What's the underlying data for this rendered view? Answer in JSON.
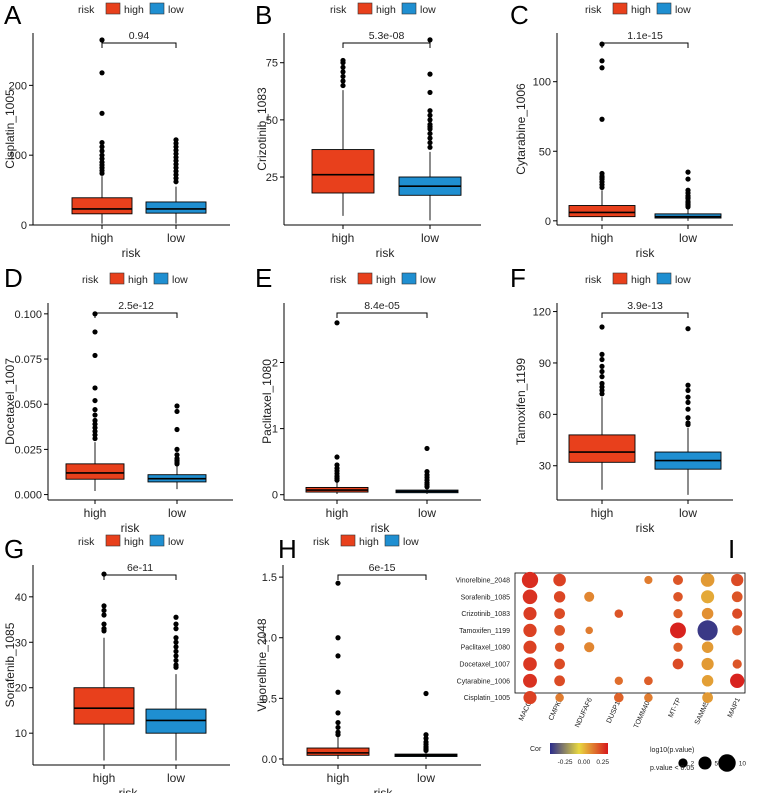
{
  "colors": {
    "high": "#e8401c",
    "low": "#1f8fd1"
  },
  "legend": {
    "title": "risk",
    "high": "high",
    "low": "low"
  },
  "chart_data": [
    {
      "id": "A",
      "type": "box",
      "xlabel": "risk",
      "ylabel": "Cisplatin_1005",
      "categories": [
        "high",
        "low"
      ],
      "pvalue": "0.94",
      "ylim": [
        0,
        275
      ],
      "yticks": [
        0,
        100,
        200
      ],
      "ytick_labels": [
        "0",
        "100",
        "200"
      ],
      "boxes": [
        {
          "q1": 16,
          "median": 23,
          "q3": 39,
          "whisker_low": 2,
          "whisker_high": 70,
          "outliers": [
            265,
            218,
            160,
            118,
            112,
            106,
            100,
            95,
            90,
            86,
            82,
            78,
            74
          ]
        },
        {
          "q1": 17,
          "median": 23,
          "q3": 33,
          "whisker_low": 2,
          "whisker_high": 55,
          "outliers": [
            122,
            117,
            112,
            107,
            102,
            97,
            92,
            87,
            82,
            77,
            72,
            67,
            62
          ]
        }
      ]
    },
    {
      "id": "B",
      "type": "box",
      "xlabel": "risk",
      "ylabel": "Crizotinib_1083",
      "categories": [
        "high",
        "low"
      ],
      "pvalue": "5.3e-08",
      "ylim": [
        4,
        88
      ],
      "yticks": [
        25,
        50,
        75
      ],
      "ytick_labels": [
        "25",
        "50",
        "75"
      ],
      "boxes": [
        {
          "q1": 18,
          "median": 26,
          "q3": 37,
          "whisker_low": 8,
          "whisker_high": 63,
          "outliers": [
            76,
            75,
            73,
            71,
            69,
            67,
            65
          ]
        },
        {
          "q1": 17,
          "median": 21,
          "q3": 25,
          "whisker_low": 6,
          "whisker_high": 36,
          "outliers": [
            85,
            70,
            62,
            54,
            52,
            50,
            48,
            47,
            46,
            44,
            42,
            40,
            38
          ]
        }
      ]
    },
    {
      "id": "C",
      "type": "box",
      "xlabel": "risk",
      "ylabel": "Cytarabine_1006",
      "categories": [
        "high",
        "low"
      ],
      "pvalue": "1.1e-15",
      "ylim": [
        -3,
        135
      ],
      "yticks": [
        0,
        50,
        100
      ],
      "ytick_labels": [
        "0",
        "50",
        "100"
      ],
      "boxes": [
        {
          "q1": 3,
          "median": 6,
          "q3": 11,
          "whisker_low": 0,
          "whisker_high": 22,
          "outliers": [
            127,
            115,
            110,
            73,
            34,
            32,
            31,
            30,
            28,
            26,
            24
          ]
        },
        {
          "q1": 2,
          "median": 3,
          "q3": 5,
          "whisker_low": 0,
          "whisker_high": 9,
          "outliers": [
            35,
            30,
            22,
            20,
            18,
            17,
            16,
            14,
            13,
            12,
            11,
            10
          ]
        }
      ]
    },
    {
      "id": "D",
      "type": "box",
      "xlabel": "risk",
      "ylabel": "Docetaxel_1007",
      "categories": [
        "high",
        "low"
      ],
      "pvalue": "2.5e-12",
      "ylim": [
        -0.003,
        0.106
      ],
      "yticks": [
        0,
        0.025,
        0.05,
        0.075,
        0.1
      ],
      "ytick_labels": [
        "0.000",
        "0.025",
        "0.050",
        "0.075",
        "0.100"
      ],
      "boxes": [
        {
          "q1": 0.0085,
          "median": 0.012,
          "q3": 0.017,
          "whisker_low": 0.002,
          "whisker_high": 0.029,
          "outliers": [
            0.1,
            0.09,
            0.077,
            0.059,
            0.052,
            0.047,
            0.044,
            0.041,
            0.039,
            0.037,
            0.035,
            0.033,
            0.031
          ]
        },
        {
          "q1": 0.007,
          "median": 0.0088,
          "q3": 0.011,
          "whisker_low": 0.003,
          "whisker_high": 0.016,
          "outliers": [
            0.049,
            0.046,
            0.036,
            0.025,
            0.022,
            0.02,
            0.019,
            0.018,
            0.017
          ]
        }
      ]
    },
    {
      "id": "E",
      "type": "box",
      "xlabel": "risk",
      "ylabel": "Paclitaxel_1080",
      "categories": [
        "high",
        "low"
      ],
      "pvalue": "8.4e-05",
      "ylim": [
        -0.08,
        2.9
      ],
      "yticks": [
        0,
        1,
        2
      ],
      "ytick_labels": [
        "0",
        "1",
        "2"
      ],
      "boxes": [
        {
          "q1": 0.04,
          "median": 0.07,
          "q3": 0.11,
          "whisker_low": 0.01,
          "whisker_high": 0.2,
          "outliers": [
            2.6,
            0.57,
            0.45,
            0.4,
            0.36,
            0.32,
            0.28,
            0.25,
            0.22
          ]
        },
        {
          "q1": 0.03,
          "median": 0.05,
          "q3": 0.07,
          "whisker_low": 0.01,
          "whisker_high": 0.1,
          "outliers": [
            0.7,
            0.35,
            0.3,
            0.26,
            0.22,
            0.18,
            0.15,
            0.12
          ]
        }
      ]
    },
    {
      "id": "F",
      "type": "box",
      "xlabel": "risk",
      "ylabel": "Tamoxifen_1199",
      "categories": [
        "high",
        "low"
      ],
      "pvalue": "3.9e-13",
      "ylim": [
        10,
        125
      ],
      "yticks": [
        30,
        60,
        90,
        120
      ],
      "ytick_labels": [
        "30",
        "60",
        "90",
        "120"
      ],
      "boxes": [
        {
          "q1": 32,
          "median": 38,
          "q3": 48,
          "whisker_low": 16,
          "whisker_high": 70,
          "outliers": [
            111,
            95,
            92,
            88,
            85,
            82,
            78,
            76,
            74,
            72
          ]
        },
        {
          "q1": 28,
          "median": 33,
          "q3": 38,
          "whisker_low": 13,
          "whisker_high": 52,
          "outliers": [
            110,
            77,
            74,
            70,
            67,
            63,
            58,
            55,
            54
          ]
        }
      ]
    },
    {
      "id": "G",
      "type": "box",
      "xlabel": "risk",
      "ylabel": "Sorafenib_1085",
      "categories": [
        "high",
        "low"
      ],
      "pvalue": "6e-11",
      "ylim": [
        3,
        47
      ],
      "yticks": [
        10,
        20,
        30,
        40
      ],
      "ytick_labels": [
        "10",
        "20",
        "30",
        "40"
      ],
      "boxes": [
        {
          "q1": 12,
          "median": 15.5,
          "q3": 20,
          "whisker_low": 4,
          "whisker_high": 31,
          "outliers": [
            45,
            38,
            37,
            36,
            34,
            33,
            32.5
          ]
        },
        {
          "q1": 10,
          "median": 12.8,
          "q3": 15.3,
          "whisker_low": 4,
          "whisker_high": 23,
          "outliers": [
            35.5,
            34,
            33,
            31,
            30,
            29,
            28,
            27,
            26,
            25,
            24.5
          ]
        }
      ]
    },
    {
      "id": "H",
      "type": "box",
      "xlabel": "risk",
      "ylabel": "Vinorelbine_2048",
      "categories": [
        "high",
        "low"
      ],
      "pvalue": "6e-15",
      "ylim": [
        -0.05,
        1.6
      ],
      "yticks": [
        0,
        0.5,
        1,
        1.5
      ],
      "ytick_labels": [
        "0.0",
        "0.5",
        "1.0",
        "1.5"
      ],
      "boxes": [
        {
          "q1": 0.03,
          "median": 0.05,
          "q3": 0.09,
          "whisker_low": 0.0,
          "whisker_high": 0.18,
          "outliers": [
            1.45,
            1.0,
            0.85,
            0.55,
            0.38,
            0.3,
            0.26,
            0.22,
            0.2
          ]
        },
        {
          "q1": 0.02,
          "median": 0.03,
          "q3": 0.04,
          "whisker_low": 0.0,
          "whisker_high": 0.06,
          "outliers": [
            0.54,
            0.2,
            0.17,
            0.14,
            0.12,
            0.1,
            0.09,
            0.08,
            0.07
          ]
        }
      ]
    },
    {
      "id": "I",
      "type": "dotplot",
      "rows": [
        "Vinorelbine_2048",
        "Sorafenib_1085",
        "Crizotinib_1083",
        "Tamoxifen_1199",
        "Paclitaxel_1080",
        "Docetaxel_1007",
        "Cytarabine_1006",
        "Cisplatin_1005"
      ],
      "cols": [
        "MACC1",
        "CMPK2",
        "NDUFAF6",
        "DUSP18",
        "TOMM40L",
        "MT-TP",
        "SAMM50",
        "MAIP1"
      ],
      "cells": [
        {
          "r": 0,
          "c": 0,
          "cor": 0.28,
          "lp": 8.5
        },
        {
          "r": 0,
          "c": 1,
          "cor": 0.24,
          "lp": 4.5
        },
        {
          "r": 0,
          "c": 4,
          "cor": 0.12,
          "lp": 1.4
        },
        {
          "r": 0,
          "c": 5,
          "cor": 0.2,
          "lp": 2.5
        },
        {
          "r": 0,
          "c": 6,
          "cor": 0.06,
          "lp": 5.5
        },
        {
          "r": 0,
          "c": 7,
          "cor": 0.22,
          "lp": 4.2
        },
        {
          "r": 1,
          "c": 0,
          "cor": 0.27,
          "lp": 6.5
        },
        {
          "r": 1,
          "c": 1,
          "cor": 0.23,
          "lp": 3.5
        },
        {
          "r": 1,
          "c": 2,
          "cor": 0.1,
          "lp": 2.5
        },
        {
          "r": 1,
          "c": 5,
          "cor": 0.2,
          "lp": 2.2
        },
        {
          "r": 1,
          "c": 6,
          "cor": 0.03,
          "lp": 5.0
        },
        {
          "r": 1,
          "c": 7,
          "cor": 0.2,
          "lp": 3.0
        },
        {
          "r": 2,
          "c": 0,
          "cor": 0.25,
          "lp": 5.0
        },
        {
          "r": 2,
          "c": 1,
          "cor": 0.22,
          "lp": 3.0
        },
        {
          "r": 2,
          "c": 3,
          "cor": 0.2,
          "lp": 1.6
        },
        {
          "r": 2,
          "c": 5,
          "cor": 0.18,
          "lp": 2.0
        },
        {
          "r": 2,
          "c": 6,
          "cor": 0.08,
          "lp": 3.6
        },
        {
          "r": 2,
          "c": 7,
          "cor": 0.22,
          "lp": 2.6
        },
        {
          "r": 3,
          "c": 0,
          "cor": 0.24,
          "lp": 5.2
        },
        {
          "r": 3,
          "c": 1,
          "cor": 0.2,
          "lp": 3.0
        },
        {
          "r": 3,
          "c": 2,
          "cor": 0.12,
          "lp": 1.1
        },
        {
          "r": 3,
          "c": 5,
          "cor": 0.3,
          "lp": 8.0
        },
        {
          "r": 3,
          "c": 6,
          "cor": -0.42,
          "lp": 14.0
        },
        {
          "r": 3,
          "c": 7,
          "cor": 0.2,
          "lp": 2.6
        },
        {
          "r": 4,
          "c": 0,
          "cor": 0.24,
          "lp": 5.0
        },
        {
          "r": 4,
          "c": 1,
          "cor": 0.2,
          "lp": 2.0
        },
        {
          "r": 4,
          "c": 2,
          "cor": 0.1,
          "lp": 2.6
        },
        {
          "r": 4,
          "c": 5,
          "cor": 0.18,
          "lp": 2.0
        },
        {
          "r": 4,
          "c": 6,
          "cor": 0.06,
          "lp": 3.6
        },
        {
          "r": 5,
          "c": 0,
          "cor": 0.26,
          "lp": 5.5
        },
        {
          "r": 5,
          "c": 1,
          "cor": 0.22,
          "lp": 3.0
        },
        {
          "r": 5,
          "c": 5,
          "cor": 0.22,
          "lp": 3.0
        },
        {
          "r": 5,
          "c": 6,
          "cor": 0.06,
          "lp": 4.2
        },
        {
          "r": 5,
          "c": 7,
          "cor": 0.2,
          "lp": 2.0
        },
        {
          "r": 6,
          "c": 0,
          "cor": 0.27,
          "lp": 5.8
        },
        {
          "r": 6,
          "c": 1,
          "cor": 0.22,
          "lp": 3.0
        },
        {
          "r": 6,
          "c": 3,
          "cor": 0.15,
          "lp": 1.5
        },
        {
          "r": 6,
          "c": 4,
          "cor": 0.18,
          "lp": 1.7
        },
        {
          "r": 6,
          "c": 6,
          "cor": 0.05,
          "lp": 3.6
        },
        {
          "r": 6,
          "c": 7,
          "cor": 0.3,
          "lp": 6.2
        },
        {
          "r": 7,
          "c": 0,
          "cor": 0.24,
          "lp": 5.0
        },
        {
          "r": 7,
          "c": 1,
          "cor": 0.12,
          "lp": 1.6
        },
        {
          "r": 7,
          "c": 3,
          "cor": 0.17,
          "lp": 2.2
        },
        {
          "r": 7,
          "c": 4,
          "cor": 0.12,
          "lp": 1.6
        },
        {
          "r": 7,
          "c": 6,
          "cor": 0.06,
          "lp": 3.0
        }
      ],
      "colorbar": {
        "title": "Cor",
        "ticks": [
          -0.25,
          0,
          0.25
        ],
        "tick_labels": [
          "-0.25",
          "0.00",
          "0.25"
        ],
        "range": [
          -0.45,
          0.32
        ],
        "stops": [
          "#2b2c8c",
          "#e8d840",
          "#d7191c"
        ]
      },
      "size_legend": {
        "title": "log10(p.value)",
        "values": [
          2,
          5,
          10
        ],
        "labels": [
          "2",
          "5",
          "10"
        ]
      },
      "note": "p.value < 0.05"
    }
  ]
}
